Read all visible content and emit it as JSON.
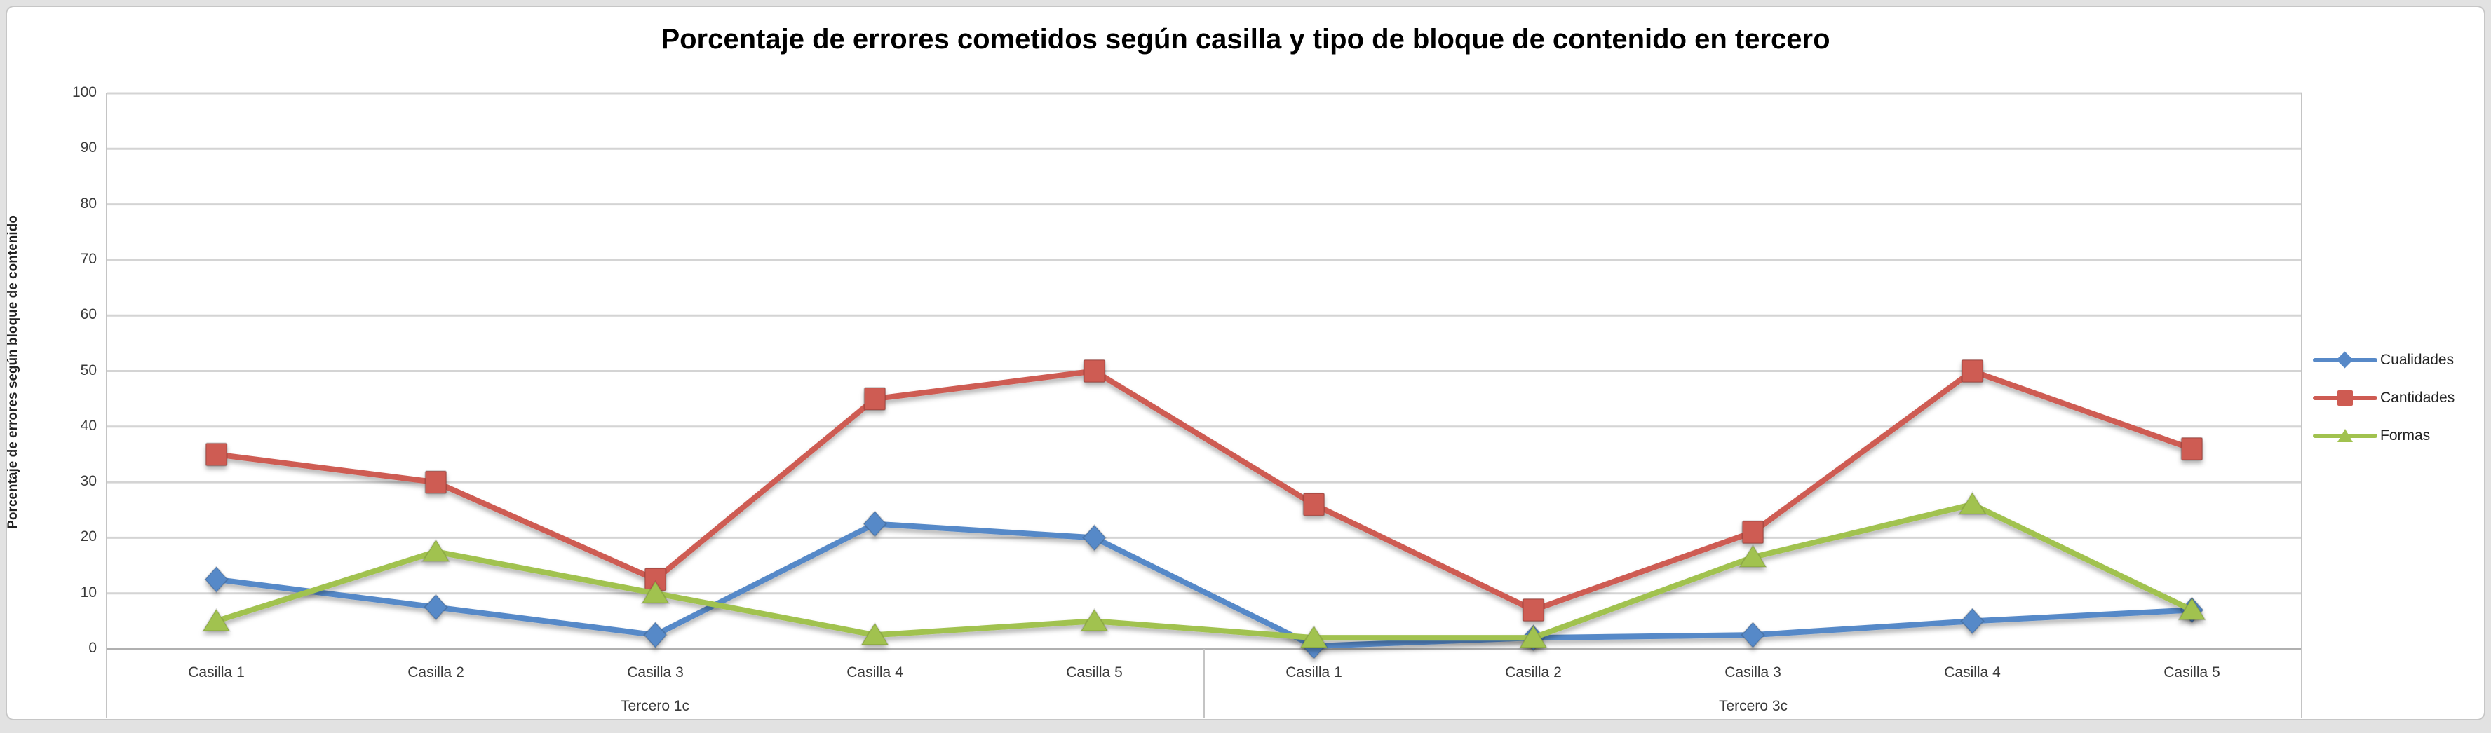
{
  "title": "Porcentaje de errores cometidos según casilla y tipo de bloque de contenido en tercero",
  "y_axis_title": "Porcentaje de errores según bloque de contenido",
  "chart_data": {
    "type": "line",
    "groups": [
      {
        "label": "Tercero 1c",
        "categories": [
          "Casilla 1",
          "Casilla 2",
          "Casilla 3",
          "Casilla 4",
          "Casilla 5"
        ]
      },
      {
        "label": "Tercero 3c",
        "categories": [
          "Casilla 1",
          "Casilla 2",
          "Casilla 3",
          "Casilla 4",
          "Casilla 5"
        ]
      }
    ],
    "series": [
      {
        "name": "Cualidades",
        "color": "#5789c8",
        "marker": "diamond",
        "values": [
          12.5,
          7.5,
          2.5,
          22.5,
          20,
          0.5,
          2,
          2.5,
          5,
          7
        ]
      },
      {
        "name": "Cantidades",
        "color": "#ce5b52",
        "marker": "square",
        "values": [
          35,
          30,
          12.5,
          45,
          50,
          26,
          7,
          21,
          50,
          36
        ]
      },
      {
        "name": "Formas",
        "color": "#a1c24f",
        "marker": "triangle",
        "values": [
          5,
          17.5,
          10,
          2.5,
          5,
          2,
          2,
          16.5,
          26,
          7
        ]
      }
    ],
    "ylim": [
      0,
      100
    ],
    "ytick_step": 10,
    "grid": true,
    "legend_position": "right",
    "grid_color": "#d4d4d4",
    "axis_line_color": "#b0b0b0",
    "band_line_color": "#c4c4c4"
  }
}
